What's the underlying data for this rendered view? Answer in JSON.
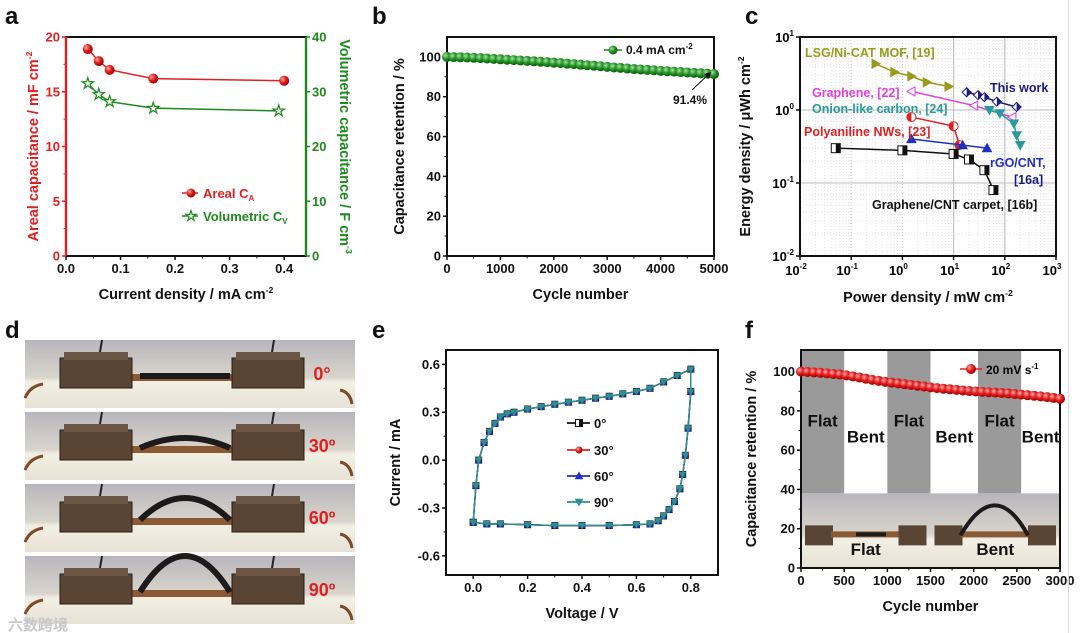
{
  "panel_labels": [
    "a",
    "b",
    "c",
    "d",
    "e",
    "f"
  ],
  "watermark": "六数跨境",
  "colors": {
    "red": "#e02020",
    "green": "#1e8a1e",
    "olive": "#9a9a1e",
    "magenta": "#e040e0",
    "navy": "#1a1a80",
    "teal": "#2a9a9a",
    "blue": "#2030c0",
    "black": "#111111",
    "gray_band": "#9a9a9a",
    "cv_teal": "#2a9090"
  },
  "chart_data": [
    {
      "panel": "a",
      "type": "line",
      "xlabel": {
        "text": "Current density / mA cm",
        "sup": "-2"
      },
      "ylabel": {
        "text": "Areal capacitance / mF cm",
        "sup": "-2"
      },
      "y2label": {
        "text": "Volumetric capacitance / F cm",
        "sup": "-3"
      },
      "xlim": [
        0,
        0.44
      ],
      "ylim": [
        0,
        20
      ],
      "y2lim": [
        0,
        40
      ],
      "x_ticks": [
        0.0,
        0.1,
        0.2,
        0.3,
        0.4
      ],
      "x_tick_labels": [
        "0.0",
        "0.1",
        "0.2",
        "0.3",
        "0.4"
      ],
      "y_ticks": [
        0,
        5,
        10,
        15,
        20
      ],
      "y_tick_labels": [
        "0",
        "5",
        "10",
        "15",
        "20"
      ],
      "y2_ticks": [
        0,
        10,
        20,
        30,
        40
      ],
      "y2_tick_labels": [
        "0",
        "10",
        "20",
        "30",
        "40"
      ],
      "legend_placement": "bottom-right",
      "series": [
        {
          "name": "Areal C",
          "sub": "A",
          "axis": "left",
          "marker": "circle",
          "color": "#e02020",
          "x": [
            0.04,
            0.06,
            0.08,
            0.16,
            0.4
          ],
          "y": [
            18.9,
            17.8,
            17.0,
            16.2,
            16.0
          ]
        },
        {
          "name": "Volumetric C",
          "sub": "V",
          "axis": "right",
          "marker": "star",
          "color": "#1e8a1e",
          "x": [
            0.04,
            0.06,
            0.08,
            0.16,
            0.39
          ],
          "y": [
            31.5,
            29.5,
            28.2,
            27.0,
            26.5
          ]
        }
      ]
    },
    {
      "panel": "b",
      "type": "line",
      "xlabel": {
        "text": "Cycle number",
        "sup": ""
      },
      "ylabel": {
        "text": "Capacitance retention / %",
        "sup": ""
      },
      "xlim": [
        0,
        5000
      ],
      "ylim": [
        0,
        110
      ],
      "x_ticks": [
        0,
        1000,
        2000,
        3000,
        4000,
        5000
      ],
      "x_tick_labels": [
        "0",
        "1000",
        "2000",
        "3000",
        "4000",
        "5000"
      ],
      "y_ticks": [
        0,
        20,
        40,
        60,
        80,
        100
      ],
      "y_tick_labels": [
        "0",
        "20",
        "40",
        "60",
        "80",
        "100"
      ],
      "legend_placement": "top-right",
      "annotation": "91.4%",
      "series": [
        {
          "name": "0.4 mA cm",
          "sup": "-2",
          "marker": "circle",
          "color": "#1e8a1e",
          "x": [
            0,
            125,
            250,
            375,
            500,
            625,
            750,
            875,
            1000,
            1125,
            1250,
            1375,
            1500,
            1625,
            1750,
            1875,
            2000,
            2125,
            2250,
            2375,
            2500,
            2625,
            2750,
            2875,
            3000,
            3125,
            3250,
            3375,
            3500,
            3625,
            3750,
            3875,
            4000,
            4125,
            4250,
            4375,
            4500,
            4625,
            4750,
            4875,
            5000
          ],
          "y": [
            100,
            99.9,
            99.8,
            99.7,
            99.6,
            99.4,
            99.2,
            99.0,
            98.8,
            98.6,
            98.4,
            98.2,
            98.0,
            97.8,
            97.6,
            97.4,
            97.1,
            96.9,
            96.6,
            96.4,
            96.1,
            95.8,
            95.6,
            95.3,
            95.0,
            94.7,
            94.5,
            94.2,
            93.9,
            93.7,
            93.5,
            93.3,
            93.0,
            92.8,
            92.6,
            92.4,
            92.2,
            92.0,
            91.8,
            91.6,
            91.4
          ]
        }
      ]
    },
    {
      "panel": "c",
      "type": "line",
      "xlabel": {
        "text": "Power density / mW cm",
        "sup": "-2"
      },
      "ylabel": {
        "text": "Energy density / μWh cm",
        "sup": "-2"
      },
      "xscale": "log",
      "yscale": "log",
      "xlim": [
        0.01,
        1000
      ],
      "ylim": [
        0.01,
        10
      ],
      "log_base": "10",
      "x_tick_exponents": [
        -2,
        -1,
        0,
        1,
        2,
        3
      ],
      "y_tick_exponents": [
        -2,
        -1,
        0,
        1
      ],
      "grid": true,
      "series": [
        {
          "name": "LSG/Ni-CAT MOF, [19]",
          "marker": "tri-right",
          "color": "#9a9a1e",
          "x": [
            0.3,
            0.7,
            1.5,
            3,
            8
          ],
          "y": [
            4.3,
            3.3,
            2.9,
            2.4,
            2.1
          ]
        },
        {
          "name": "Graphene, [22]",
          "marker": "tri-left",
          "color": "#e040e0",
          "x": [
            1.5,
            25,
            140
          ],
          "y": [
            1.8,
            1.15,
            0.8
          ]
        },
        {
          "name": "This work",
          "marker": "diamond",
          "color": "#1a1a80",
          "x": [
            18,
            30,
            40,
            70,
            170
          ],
          "y": [
            1.75,
            1.6,
            1.5,
            1.3,
            1.1
          ]
        },
        {
          "name": "Onion-like carbon, [24]",
          "marker": "tri-down",
          "color": "#2a9a9a",
          "x": [
            50,
            80,
            150,
            170,
            200
          ],
          "y": [
            1.0,
            0.9,
            0.65,
            0.45,
            0.33
          ]
        },
        {
          "name": "Polyaniline NWs, [23]",
          "marker": "circle-half",
          "color": "#e02020",
          "x": [
            1.5,
            10,
            13
          ],
          "y": [
            0.8,
            0.6,
            0.33
          ]
        },
        {
          "name": "rGO/CNT,",
          "name2": "[16a]",
          "marker": "tri-up",
          "color": "#2030c0",
          "x": [
            1.5,
            15,
            45
          ],
          "y": [
            0.4,
            0.33,
            0.3
          ]
        },
        {
          "name": "Graphene/CNT carpet, [16b]",
          "marker": "square",
          "color": "#111111",
          "x": [
            0.05,
            1,
            10,
            20,
            40,
            60
          ],
          "y": [
            0.3,
            0.28,
            0.25,
            0.21,
            0.15,
            0.08
          ]
        }
      ]
    },
    {
      "panel": "e",
      "type": "line",
      "xlabel": {
        "text": "Voltage / V",
        "sup": ""
      },
      "ylabel": {
        "text": "Current / mA",
        "sup": ""
      },
      "xlim": [
        -0.1,
        0.9
      ],
      "ylim": [
        -0.72,
        0.69
      ],
      "x_ticks": [
        0,
        0.2,
        0.4,
        0.6,
        0.8
      ],
      "x_tick_labels": [
        "0.0",
        "0.2",
        "0.4",
        "0.6",
        "0.8"
      ],
      "y_ticks": [
        -0.6,
        -0.3,
        0,
        0.3,
        0.6
      ],
      "y_tick_labels": [
        "-0.6",
        "-0.3",
        "0.0",
        "0.3",
        "0.6"
      ],
      "legend_placement": "center",
      "cv_x": [
        0,
        0.01,
        0.02,
        0.04,
        0.06,
        0.08,
        0.1,
        0.125,
        0.15,
        0.2,
        0.25,
        0.3,
        0.35,
        0.4,
        0.45,
        0.5,
        0.55,
        0.6,
        0.65,
        0.7,
        0.75,
        0.8,
        0.8,
        0.79,
        0.78,
        0.77,
        0.76,
        0.74,
        0.72,
        0.7,
        0.68,
        0.65,
        0.6,
        0.5,
        0.4,
        0.3,
        0.2,
        0.1,
        0.05,
        0
      ],
      "cv_y": [
        -0.39,
        -0.16,
        0.0,
        0.11,
        0.18,
        0.23,
        0.27,
        0.29,
        0.3,
        0.32,
        0.335,
        0.35,
        0.363,
        0.375,
        0.388,
        0.4,
        0.415,
        0.43,
        0.45,
        0.49,
        0.53,
        0.57,
        0.43,
        0.2,
        0.03,
        -0.09,
        -0.18,
        -0.26,
        -0.31,
        -0.35,
        -0.38,
        -0.4,
        -0.405,
        -0.41,
        -0.41,
        -0.41,
        -0.405,
        -0.4,
        -0.4,
        -0.39
      ],
      "series": [
        {
          "name": "0°",
          "marker": "square",
          "color": "#111111"
        },
        {
          "name": "30°",
          "marker": "circle",
          "color": "#e02020"
        },
        {
          "name": "60°",
          "marker": "tri-up",
          "color": "#2030c0"
        },
        {
          "name": "90°",
          "marker": "tri-down",
          "color": "#2a9090"
        }
      ]
    },
    {
      "panel": "f",
      "type": "line",
      "xlabel": {
        "text": "Cycle number",
        "sup": ""
      },
      "ylabel": {
        "text": "Capacitance retention / %",
        "sup": ""
      },
      "xlim": [
        0,
        3000
      ],
      "ylim": [
        0,
        111
      ],
      "x_ticks": [
        0,
        500,
        1000,
        1500,
        2000,
        2500,
        3000
      ],
      "x_tick_labels": [
        "0",
        "500",
        "1000",
        "1500",
        "2000",
        "2500",
        "3000"
      ],
      "y_ticks": [
        0,
        20,
        40,
        60,
        80,
        100
      ],
      "y_tick_labels": [
        "0",
        "20",
        "40",
        "60",
        "80",
        "100"
      ],
      "legend_placement": "top-right",
      "bands": [
        {
          "label": "Flat",
          "from": 0,
          "to": 500,
          "shaded": true
        },
        {
          "label": "Bent",
          "from": 500,
          "to": 1000,
          "shaded": false
        },
        {
          "label": "Flat",
          "from": 1000,
          "to": 1500,
          "shaded": true
        },
        {
          "label": "Bent",
          "from": 1500,
          "to": 2050,
          "shaded": false
        },
        {
          "label": "Flat",
          "from": 2050,
          "to": 2550,
          "shaded": true
        },
        {
          "label": "Bent",
          "from": 2550,
          "to": 3000,
          "shaded": false
        }
      ],
      "inset_labels": [
        "Flat",
        "Bent"
      ],
      "series": [
        {
          "name": "20 mV s",
          "sup": "-1",
          "marker": "circle",
          "color": "#e02020",
          "x": [
            0,
            75,
            150,
            225,
            300,
            375,
            450,
            525,
            600,
            675,
            750,
            825,
            900,
            975,
            1050,
            1125,
            1200,
            1275,
            1350,
            1425,
            1500,
            1575,
            1650,
            1725,
            1800,
            1875,
            1950,
            2025,
            2100,
            2175,
            2250,
            2325,
            2400,
            2475,
            2550,
            2625,
            2700,
            2775,
            2850,
            2925,
            3000
          ],
          "y": [
            100,
            99.8,
            99.6,
            99.4,
            99.1,
            98.8,
            98.5,
            98.1,
            97.6,
            97.0,
            96.4,
            95.8,
            95.3,
            94.8,
            94.4,
            94.0,
            93.6,
            93.2,
            92.8,
            92.4,
            92.0,
            91.6,
            91.3,
            91.0,
            90.7,
            90.4,
            90.1,
            89.9,
            89.7,
            89.5,
            89.3,
            89.1,
            88.9,
            88.6,
            88.3,
            88.0,
            87.7,
            87.4,
            87.0,
            86.6,
            86.2
          ]
        }
      ]
    }
  ],
  "photo_panel_d": {
    "angle_labels": [
      "0°",
      "30º",
      "60º",
      "90º"
    ]
  }
}
